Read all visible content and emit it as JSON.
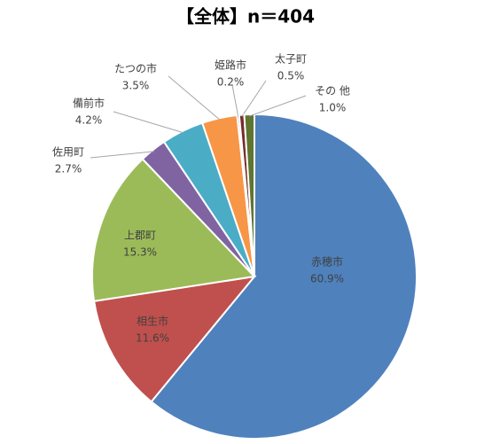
{
  "chart_data": {
    "type": "pie",
    "title": "【全体】n＝404",
    "categories": [
      "赤穂市",
      "相生市",
      "上郡町",
      "佐用町",
      "備前市",
      "たつの市",
      "姫路市",
      "太子町",
      "その 他"
    ],
    "values": [
      60.9,
      11.6,
      15.3,
      2.7,
      4.2,
      3.5,
      0.2,
      0.5,
      1.0
    ],
    "value_labels": [
      "60.9%",
      "11.6%",
      "15.3%",
      "2.7%",
      "4.2%",
      "3.5%",
      "0.2%",
      "0.5%",
      "1.0%"
    ],
    "colors": [
      "#4f81bd",
      "#c0504d",
      "#9bbb59",
      "#8064a2",
      "#4bacc6",
      "#f79646",
      "#2c4d75",
      "#772c2a",
      "#5f7530"
    ]
  }
}
